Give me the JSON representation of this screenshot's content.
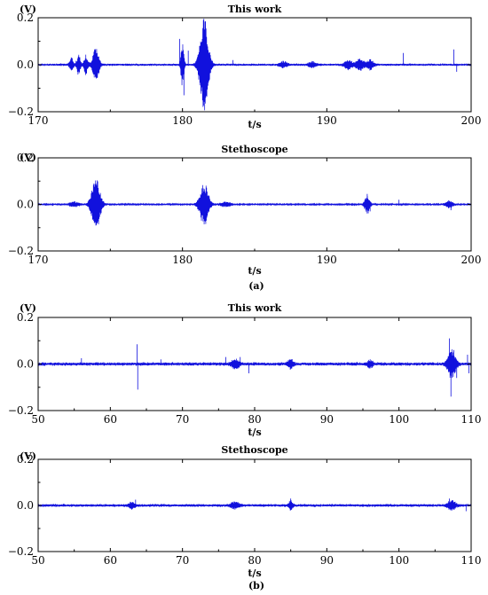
{
  "figure": {
    "panel_labels": [
      "(a)",
      "(b)"
    ]
  },
  "colors": {
    "signal": "#1111dd",
    "axis": "#000000"
  },
  "chart_data": [
    {
      "type": "line",
      "title": "This work",
      "ylabel": "(V)",
      "xlabel": "t/s",
      "xlim": [
        170,
        200
      ],
      "ylim": [
        -0.2,
        0.2
      ],
      "xticks": [
        170,
        180,
        190,
        200
      ],
      "yticks": [
        -0.2,
        0.0,
        0.2
      ],
      "ytick_labels": [
        "−0.2",
        "0.0",
        "0.2"
      ],
      "noise": 0.004,
      "bursts": [
        {
          "t": 172.3,
          "a": 0.03,
          "w": 0.15
        },
        {
          "t": 172.8,
          "a": 0.04,
          "w": 0.15
        },
        {
          "t": 173.3,
          "a": 0.04,
          "w": 0.15
        },
        {
          "t": 174.0,
          "a": 0.07,
          "w": 0.25
        },
        {
          "t": 180.0,
          "a": 0.1,
          "w": 0.12
        },
        {
          "t": 181.5,
          "a": 0.2,
          "w": 0.35
        },
        {
          "t": 187.0,
          "a": 0.012,
          "w": 0.3
        },
        {
          "t": 189.0,
          "a": 0.012,
          "w": 0.3
        },
        {
          "t": 191.5,
          "a": 0.02,
          "w": 0.3
        },
        {
          "t": 192.3,
          "a": 0.025,
          "w": 0.3
        },
        {
          "t": 193.0,
          "a": 0.02,
          "w": 0.3
        }
      ],
      "spikes": [
        {
          "t": 179.8,
          "a": 0.11
        },
        {
          "t": 180.1,
          "a": -0.13
        },
        {
          "t": 180.4,
          "a": 0.06
        },
        {
          "t": 183.5,
          "a": 0.02
        },
        {
          "t": 195.3,
          "a": 0.05
        },
        {
          "t": 198.8,
          "a": 0.065
        },
        {
          "t": 199.0,
          "a": -0.03
        }
      ]
    },
    {
      "type": "line",
      "title": "Stethoscope",
      "ylabel": "(V)",
      "xlabel": "t/s",
      "xlim": [
        170,
        200
      ],
      "ylim": [
        -0.2,
        0.2
      ],
      "xticks": [
        170,
        180,
        190,
        200
      ],
      "yticks": [
        -0.2,
        0.0,
        0.2
      ],
      "ytick_labels": [
        "−0.2",
        "0.0",
        "0.2"
      ],
      "noise": 0.003,
      "bursts": [
        {
          "t": 172.5,
          "a": 0.01,
          "w": 0.4
        },
        {
          "t": 174.0,
          "a": 0.11,
          "w": 0.35
        },
        {
          "t": 181.5,
          "a": 0.09,
          "w": 0.35
        },
        {
          "t": 183.0,
          "a": 0.01,
          "w": 0.4
        },
        {
          "t": 192.8,
          "a": 0.04,
          "w": 0.2
        },
        {
          "t": 198.5,
          "a": 0.015,
          "w": 0.3
        }
      ],
      "spikes": [
        {
          "t": 192.8,
          "a": 0.045
        },
        {
          "t": 193.0,
          "a": -0.03
        },
        {
          "t": 195.0,
          "a": 0.02
        },
        {
          "t": 198.6,
          "a": -0.025
        }
      ]
    },
    {
      "type": "line",
      "title": "This work",
      "ylabel": "(V)",
      "xlabel": "t/s",
      "xlim": [
        50,
        110
      ],
      "ylim": [
        -0.2,
        0.2
      ],
      "xticks": [
        50,
        60,
        70,
        80,
        90,
        100,
        110
      ],
      "yticks": [
        -0.2,
        0.0,
        0.2
      ],
      "ytick_labels": [
        "−0.2",
        "0.0",
        "0.2"
      ],
      "noise": 0.006,
      "bursts": [
        {
          "t": 77.3,
          "a": 0.02,
          "w": 0.6
        },
        {
          "t": 85.0,
          "a": 0.02,
          "w": 0.4
        },
        {
          "t": 96.0,
          "a": 0.015,
          "w": 0.4
        },
        {
          "t": 107.3,
          "a": 0.06,
          "w": 0.6
        }
      ],
      "spikes": [
        {
          "t": 56.0,
          "a": 0.025
        },
        {
          "t": 63.7,
          "a": 0.085
        },
        {
          "t": 63.8,
          "a": -0.11
        },
        {
          "t": 67.0,
          "a": 0.02
        },
        {
          "t": 76.0,
          "a": 0.03
        },
        {
          "t": 78.0,
          "a": 0.03
        },
        {
          "t": 79.2,
          "a": -0.04
        },
        {
          "t": 107.0,
          "a": 0.11
        },
        {
          "t": 107.2,
          "a": -0.14
        },
        {
          "t": 107.6,
          "a": 0.06
        },
        {
          "t": 108.0,
          "a": -0.06
        },
        {
          "t": 109.5,
          "a": 0.04
        },
        {
          "t": 109.7,
          "a": -0.04
        }
      ]
    },
    {
      "type": "line",
      "title": "Stethoscope",
      "ylabel": "(V)",
      "xlabel": "t/s",
      "xlim": [
        50,
        110
      ],
      "ylim": [
        -0.2,
        0.2
      ],
      "xticks": [
        50,
        60,
        70,
        80,
        90,
        100,
        110
      ],
      "yticks": [
        -0.2,
        0.0,
        0.2
      ],
      "ytick_labels": [
        "−0.2",
        "0.0",
        "0.2"
      ],
      "noise": 0.005,
      "bursts": [
        {
          "t": 63.0,
          "a": 0.012,
          "w": 0.5
        },
        {
          "t": 77.3,
          "a": 0.015,
          "w": 0.6
        },
        {
          "t": 85.0,
          "a": 0.02,
          "w": 0.3
        },
        {
          "t": 107.3,
          "a": 0.02,
          "w": 0.6
        }
      ],
      "spikes": [
        {
          "t": 63.5,
          "a": 0.025
        },
        {
          "t": 85.0,
          "a": 0.03
        },
        {
          "t": 107.0,
          "a": 0.03
        },
        {
          "t": 109.3,
          "a": -0.025
        }
      ]
    }
  ]
}
